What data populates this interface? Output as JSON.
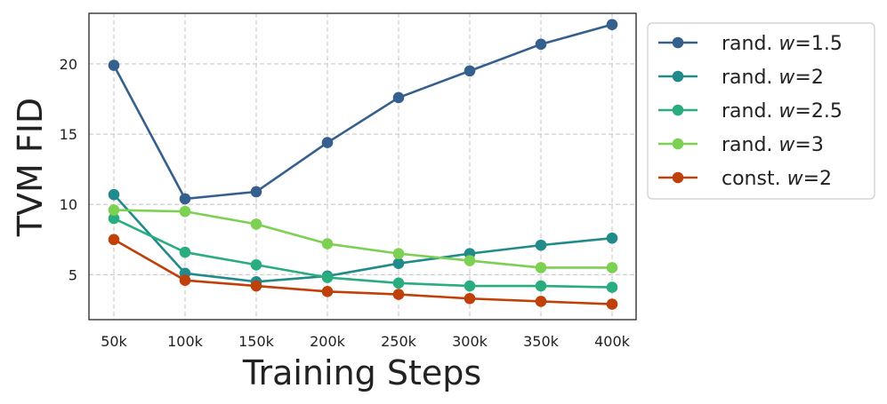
{
  "chart_data": {
    "type": "line",
    "title": "",
    "xlabel": "Training Steps",
    "ylabel": "TVM FID",
    "categories": [
      "50k",
      "100k",
      "150k",
      "200k",
      "250k",
      "300k",
      "350k",
      "400k"
    ],
    "yticks": [
      5,
      10,
      15,
      20
    ],
    "ylim": [
      1.8,
      23.6
    ],
    "grid": true,
    "legend_position": "outside-right",
    "series": [
      {
        "name": "rand. w=1.5",
        "prefix": "rand. ",
        "var": "w",
        "suffix": "=1.5",
        "color": "#355f8d",
        "values": [
          19.9,
          10.4,
          10.9,
          14.4,
          17.6,
          19.5,
          21.4,
          22.8
        ]
      },
      {
        "name": "rand. w=2",
        "prefix": "rand. ",
        "var": "w",
        "suffix": "=2",
        "color": "#218a8a",
        "values": [
          10.7,
          5.1,
          4.5,
          4.9,
          5.8,
          6.5,
          7.1,
          7.6
        ]
      },
      {
        "name": "rand. w=2.5",
        "prefix": "rand. ",
        "var": "w",
        "suffix": "=2.5",
        "color": "#2aad7e",
        "values": [
          9.0,
          6.6,
          5.7,
          4.8,
          4.4,
          4.2,
          4.2,
          4.1
        ]
      },
      {
        "name": "rand. w=3",
        "prefix": "rand. ",
        "var": "w",
        "suffix": "=3",
        "color": "#7cd052",
        "values": [
          9.6,
          9.5,
          8.6,
          7.2,
          6.5,
          6.0,
          5.5,
          5.5
        ]
      },
      {
        "name": "const. w=2",
        "prefix": "const. ",
        "var": "w",
        "suffix": "=2",
        "color": "#c0400a",
        "values": [
          7.5,
          4.6,
          4.2,
          3.8,
          3.6,
          3.3,
          3.1,
          2.9
        ]
      }
    ]
  }
}
